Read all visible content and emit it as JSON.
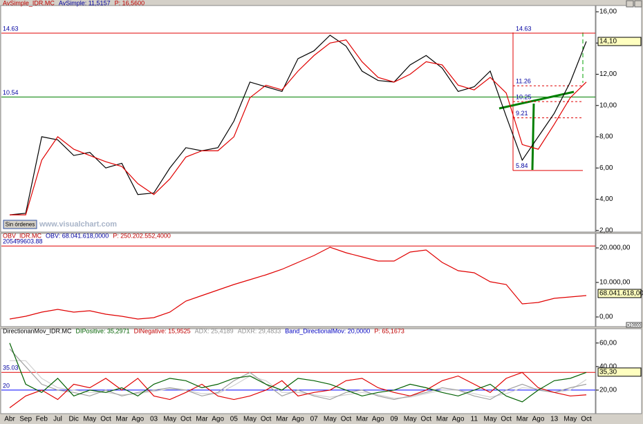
{
  "x_categories": [
    "Abr",
    "Sep",
    "Feb",
    "Jul",
    "Dic",
    "May",
    "Oct",
    "Mar",
    "Ago",
    "03",
    "May",
    "Oct",
    "Mar",
    "Ago",
    "05",
    "May",
    "Oct",
    "Mar",
    "Ago",
    "07",
    "May",
    "Oct",
    "Mar",
    "Ago",
    "09",
    "May",
    "Oct",
    "Mar",
    "Ago",
    "11",
    "May",
    "Oct",
    "Mar",
    "Ago",
    "13",
    "May",
    "Oct"
  ],
  "watermark": "www.visualchart.com",
  "button": "Sin órdenes",
  "scale_note": "x10000",
  "chart_data": [
    {
      "type": "line",
      "header": [
        {
          "text": "AvSimple_IDR.MC",
          "color": "#c00000"
        },
        {
          "text": "AvSimple: 11,5157",
          "color": "#0000a0"
        },
        {
          "text": "P: 16,5600",
          "color": "#c00000"
        }
      ],
      "ylim": [
        1.9,
        16.4
      ],
      "yticks": [
        {
          "value": 2,
          "label": "2,00"
        },
        {
          "value": 4,
          "label": "4,00"
        },
        {
          "value": 6,
          "label": "6,00"
        },
        {
          "value": 8,
          "label": "8,00"
        },
        {
          "value": 10,
          "label": "10,00"
        },
        {
          "value": 12,
          "label": "12,00"
        },
        {
          "value": 14,
          "label": "14,00"
        },
        {
          "value": 16,
          "label": "16,00"
        }
      ],
      "series": [
        {
          "name": "IDR.MC",
          "color": "#000000",
          "values": [
            3.0,
            3.1,
            8.0,
            7.8,
            6.8,
            7.0,
            6.0,
            6.3,
            4.3,
            4.4,
            6.0,
            7.3,
            7.1,
            7.3,
            9.0,
            11.5,
            11.2,
            10.9,
            13.0,
            13.5,
            14.5,
            13.8,
            12.2,
            11.6,
            11.5,
            12.6,
            13.2,
            12.4,
            10.9,
            11.2,
            12.2,
            9.3,
            6.5,
            8.0,
            9.5,
            11.5,
            14.1
          ]
        },
        {
          "name": "AvSimple",
          "color": "#e00000",
          "values": [
            3.0,
            3.0,
            6.5,
            8.0,
            7.2,
            6.8,
            6.4,
            6.1,
            5.0,
            4.3,
            5.3,
            6.7,
            7.1,
            7.1,
            8.0,
            10.5,
            11.3,
            11.0,
            12.2,
            13.2,
            14.0,
            14.2,
            12.8,
            11.8,
            11.5,
            12.0,
            12.8,
            12.6,
            11.3,
            11.0,
            11.8,
            10.8,
            7.5,
            7.2,
            8.8,
            10.5,
            11.5
          ]
        }
      ],
      "reference_lines": [
        {
          "value": 14.63,
          "color": "#e00000"
        },
        {
          "value": 10.54,
          "color": "#008000"
        }
      ],
      "levels": [
        11.26,
        10.25,
        9.21,
        5.84
      ],
      "last_value": {
        "value": 14.1,
        "label": "14,10"
      }
    },
    {
      "type": "line",
      "header": [
        {
          "text": "OBV_IDR.MC",
          "color": "#c00000"
        },
        {
          "text": "OBV: 68.041.618,0000",
          "color": "#0000a0"
        },
        {
          "text": "P: 250.202.552,4000",
          "color": "#c00000"
        }
      ],
      "ylim": [
        -2600,
        23800
      ],
      "yticks": [
        {
          "value": 0,
          "label": "0,00"
        },
        {
          "value": 10000,
          "label": "10.000,00"
        },
        {
          "value": 20000,
          "label": "20.000,00"
        }
      ],
      "series": [
        {
          "name": "OBV",
          "color": "#e00000",
          "values": [
            -600,
            200,
            1400,
            2200,
            1400,
            1800,
            800,
            200,
            -600,
            -200,
            1400,
            4600,
            6200,
            7800,
            9400,
            10800,
            12200,
            13800,
            15800,
            17800,
            20200,
            18600,
            17400,
            16200,
            16200,
            18800,
            19400,
            15800,
            13400,
            12800,
            10200,
            9400,
            3800,
            4200,
            5400,
            5800,
            6200
          ]
        }
      ],
      "reference_lines": [
        {
          "value": 20549.96,
          "label": "205499603.88",
          "color": "#e00000"
        }
      ],
      "last_value": {
        "value": 6804.16,
        "label": "68.041.618,00"
      }
    },
    {
      "type": "line",
      "header": [
        {
          "text": "DirectionanMov_IDR.MC",
          "color": "#000000"
        },
        {
          "text": "DIPositive: 35,2971",
          "color": "#006000"
        },
        {
          "text": "DINegative: 15,9525",
          "color": "#c00000"
        },
        {
          "text": "ADX: 25,4189",
          "color": "#909090"
        },
        {
          "text": "ADXR: 29,4833",
          "color": "#909090"
        },
        {
          "text": "Band_DirectionalMov: 20,0000",
          "color": "#0000c0"
        },
        {
          "text": "P: 65,1673",
          "color": "#c00000"
        }
      ],
      "ylim": [
        0,
        71
      ],
      "yticks": [
        {
          "value": 20,
          "label": "20,00"
        },
        {
          "value": 40,
          "label": "40,00"
        },
        {
          "value": 60,
          "label": "60,00"
        }
      ],
      "series": [
        {
          "name": "ADXR",
          "color": "#d0d0d0",
          "values": [
            45,
            45,
            30,
            22,
            20,
            18,
            18,
            16,
            17,
            19,
            21,
            20,
            17,
            17,
            24,
            32,
            28,
            18,
            18,
            16,
            14,
            16,
            18,
            16,
            13,
            14,
            17,
            20,
            20,
            17,
            14,
            17,
            22,
            21,
            18,
            20,
            29
          ]
        },
        {
          "name": "ADX",
          "color": "#a0a0a0",
          "values": [
            55,
            40,
            25,
            20,
            18,
            15,
            20,
            15,
            18,
            20,
            22,
            20,
            15,
            18,
            28,
            35,
            25,
            15,
            20,
            15,
            12,
            18,
            20,
            15,
            12,
            15,
            18,
            22,
            20,
            15,
            12,
            20,
            25,
            20,
            18,
            22,
            25
          ]
        },
        {
          "name": "DINegative",
          "color": "#e00000",
          "values": [
            5,
            15,
            20,
            12,
            25,
            22,
            30,
            20,
            30,
            15,
            12,
            18,
            25,
            15,
            12,
            15,
            20,
            28,
            15,
            18,
            20,
            28,
            30,
            22,
            18,
            15,
            20,
            28,
            32,
            25,
            18,
            30,
            35,
            22,
            18,
            15,
            16
          ]
        },
        {
          "name": "DIPositive",
          "color": "#006000",
          "values": [
            60,
            25,
            18,
            30,
            15,
            20,
            18,
            22,
            15,
            25,
            30,
            28,
            22,
            25,
            30,
            32,
            25,
            20,
            30,
            28,
            25,
            20,
            15,
            18,
            20,
            25,
            22,
            18,
            15,
            20,
            25,
            15,
            10,
            20,
            28,
            30,
            35
          ]
        }
      ],
      "reference_lines": [
        {
          "value": 35.03,
          "color": "#e00000"
        },
        {
          "value": 20,
          "color": "#0000ff"
        }
      ],
      "last_value": {
        "value": 35.3,
        "label": "35,30"
      }
    }
  ]
}
